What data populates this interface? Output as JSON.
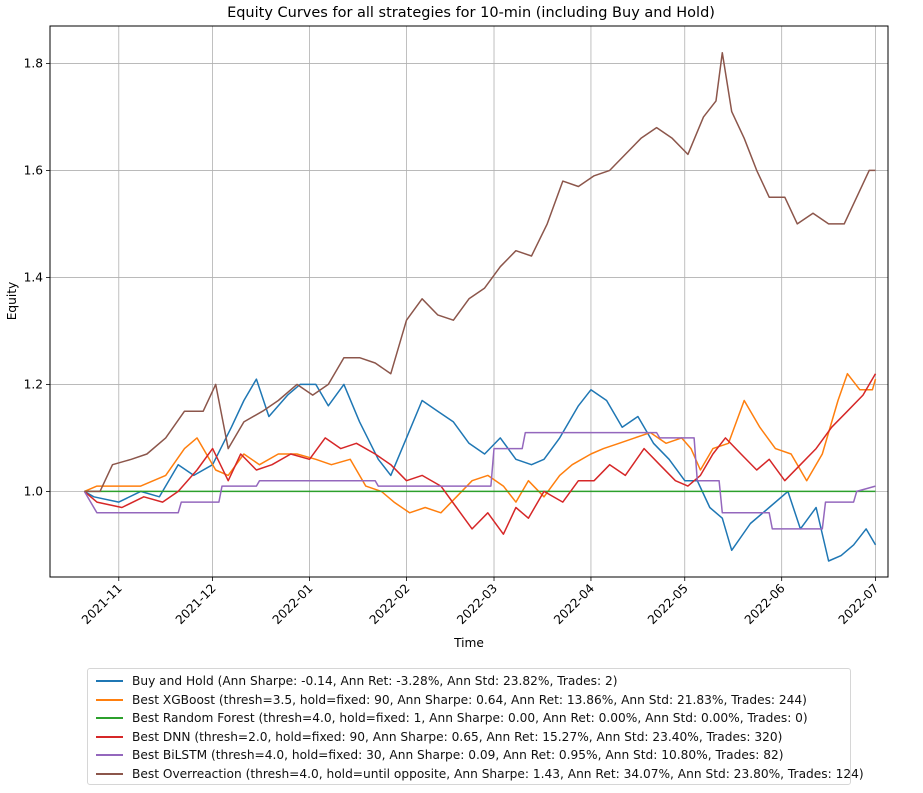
{
  "chart_data": {
    "type": "line",
    "title": "Equity Curves for all strategies for 10-min (including Buy and Hold)",
    "xlabel": "Time",
    "ylabel": "Equity",
    "grid": true,
    "xlim": [
      "2021-10-10",
      "2022-07-05"
    ],
    "ylim": [
      0.84,
      1.87
    ],
    "x_ticks": [
      {
        "date": "2021-11-01",
        "label": "2021-11"
      },
      {
        "date": "2021-12-01",
        "label": "2021-12"
      },
      {
        "date": "2022-01-01",
        "label": "2022-01"
      },
      {
        "date": "2022-02-01",
        "label": "2022-02"
      },
      {
        "date": "2022-03-01",
        "label": "2022-03"
      },
      {
        "date": "2022-04-01",
        "label": "2022-04"
      },
      {
        "date": "2022-05-01",
        "label": "2022-05"
      },
      {
        "date": "2022-06-01",
        "label": "2022-06"
      },
      {
        "date": "2022-07-01",
        "label": "2022-07"
      }
    ],
    "y_ticks": [
      1.0,
      1.2,
      1.4,
      1.6,
      1.8
    ],
    "y_tick_labels": [
      "1.0",
      "1.2",
      "1.4",
      "1.6",
      "1.8"
    ],
    "legend_position": "below",
    "series": [
      {
        "name": "Buy and Hold (Ann Sharpe: -0.14, Ann Ret: -3.28%, Ann Std: 23.82%, Trades: 2)",
        "color": "#1f77b4",
        "points": [
          [
            "2021-10-21",
            1.0
          ],
          [
            "2021-10-24",
            0.99
          ],
          [
            "2021-11-01",
            0.98
          ],
          [
            "2021-11-08",
            1.0
          ],
          [
            "2021-11-14",
            0.99
          ],
          [
            "2021-11-20",
            1.05
          ],
          [
            "2021-11-25",
            1.03
          ],
          [
            "2021-12-01",
            1.05
          ],
          [
            "2021-12-07",
            1.12
          ],
          [
            "2021-12-11",
            1.17
          ],
          [
            "2021-12-15",
            1.21
          ],
          [
            "2021-12-19",
            1.14
          ],
          [
            "2021-12-25",
            1.18
          ],
          [
            "2021-12-29",
            1.2
          ],
          [
            "2022-01-03",
            1.2
          ],
          [
            "2022-01-07",
            1.16
          ],
          [
            "2022-01-12",
            1.2
          ],
          [
            "2022-01-17",
            1.13
          ],
          [
            "2022-01-23",
            1.06
          ],
          [
            "2022-01-27",
            1.03
          ],
          [
            "2022-02-01",
            1.1
          ],
          [
            "2022-02-06",
            1.17
          ],
          [
            "2022-02-11",
            1.15
          ],
          [
            "2022-02-16",
            1.13
          ],
          [
            "2022-02-21",
            1.09
          ],
          [
            "2022-02-26",
            1.07
          ],
          [
            "2022-03-03",
            1.1
          ],
          [
            "2022-03-08",
            1.06
          ],
          [
            "2022-03-13",
            1.05
          ],
          [
            "2022-03-17",
            1.06
          ],
          [
            "2022-03-22",
            1.1
          ],
          [
            "2022-03-28",
            1.16
          ],
          [
            "2022-04-01",
            1.19
          ],
          [
            "2022-04-06",
            1.17
          ],
          [
            "2022-04-11",
            1.12
          ],
          [
            "2022-04-16",
            1.14
          ],
          [
            "2022-04-21",
            1.09
          ],
          [
            "2022-04-26",
            1.06
          ],
          [
            "2022-05-01",
            1.02
          ],
          [
            "2022-05-05",
            1.02
          ],
          [
            "2022-05-09",
            0.97
          ],
          [
            "2022-05-13",
            0.95
          ],
          [
            "2022-05-16",
            0.89
          ],
          [
            "2022-05-22",
            0.94
          ],
          [
            "2022-05-28",
            0.97
          ],
          [
            "2022-06-03",
            1.0
          ],
          [
            "2022-06-07",
            0.93
          ],
          [
            "2022-06-12",
            0.97
          ],
          [
            "2022-06-16",
            0.87
          ],
          [
            "2022-06-20",
            0.88
          ],
          [
            "2022-06-24",
            0.9
          ],
          [
            "2022-06-28",
            0.93
          ],
          [
            "2022-07-01",
            0.9
          ]
        ]
      },
      {
        "name": "Best XGBoost (thresh=3.5, hold=fixed: 90, Ann Sharpe: 0.64, Ann Ret: 13.86%, Ann Std: 21.83%, Trades: 244)",
        "color": "#ff7f0e",
        "points": [
          [
            "2021-10-21",
            1.0
          ],
          [
            "2021-10-25",
            1.01
          ],
          [
            "2021-11-08",
            1.01
          ],
          [
            "2021-11-16",
            1.03
          ],
          [
            "2021-11-22",
            1.08
          ],
          [
            "2021-11-26",
            1.1
          ],
          [
            "2021-12-02",
            1.04
          ],
          [
            "2021-12-06",
            1.03
          ],
          [
            "2021-12-11",
            1.07
          ],
          [
            "2021-12-16",
            1.05
          ],
          [
            "2021-12-22",
            1.07
          ],
          [
            "2021-12-28",
            1.07
          ],
          [
            "2022-01-03",
            1.06
          ],
          [
            "2022-01-08",
            1.05
          ],
          [
            "2022-01-14",
            1.06
          ],
          [
            "2022-01-19",
            1.01
          ],
          [
            "2022-01-24",
            1.0
          ],
          [
            "2022-01-28",
            0.98
          ],
          [
            "2022-02-02",
            0.96
          ],
          [
            "2022-02-07",
            0.97
          ],
          [
            "2022-02-12",
            0.96
          ],
          [
            "2022-02-17",
            0.99
          ],
          [
            "2022-02-22",
            1.02
          ],
          [
            "2022-02-27",
            1.03
          ],
          [
            "2022-03-04",
            1.01
          ],
          [
            "2022-03-08",
            0.98
          ],
          [
            "2022-03-12",
            1.02
          ],
          [
            "2022-03-17",
            0.99
          ],
          [
            "2022-03-22",
            1.03
          ],
          [
            "2022-03-26",
            1.05
          ],
          [
            "2022-04-01",
            1.07
          ],
          [
            "2022-04-05",
            1.08
          ],
          [
            "2022-04-10",
            1.09
          ],
          [
            "2022-04-15",
            1.1
          ],
          [
            "2022-04-20",
            1.11
          ],
          [
            "2022-04-25",
            1.09
          ],
          [
            "2022-04-30",
            1.1
          ],
          [
            "2022-05-03",
            1.08
          ],
          [
            "2022-05-06",
            1.04
          ],
          [
            "2022-05-10",
            1.08
          ],
          [
            "2022-05-15",
            1.09
          ],
          [
            "2022-05-20",
            1.17
          ],
          [
            "2022-05-25",
            1.12
          ],
          [
            "2022-05-30",
            1.08
          ],
          [
            "2022-06-04",
            1.07
          ],
          [
            "2022-06-09",
            1.02
          ],
          [
            "2022-06-14",
            1.07
          ],
          [
            "2022-06-19",
            1.17
          ],
          [
            "2022-06-22",
            1.22
          ],
          [
            "2022-06-26",
            1.19
          ],
          [
            "2022-06-30",
            1.19
          ],
          [
            "2022-07-01",
            1.21
          ]
        ]
      },
      {
        "name": "Best Random Forest (thresh=4.0, hold=fixed: 1, Ann Sharpe: 0.00, Ann Ret: 0.00%, Ann Std: 0.00%, Trades: 0)",
        "color": "#2ca02c",
        "points": [
          [
            "2021-10-21",
            1.0
          ],
          [
            "2022-07-01",
            1.0
          ]
        ]
      },
      {
        "name": "Best DNN (thresh=2.0, hold=fixed: 90, Ann Sharpe: 0.65, Ann Ret: 15.27%, Ann Std: 23.40%, Trades: 320)",
        "color": "#d62728",
        "points": [
          [
            "2021-10-21",
            1.0
          ],
          [
            "2021-10-25",
            0.98
          ],
          [
            "2021-11-02",
            0.97
          ],
          [
            "2021-11-09",
            0.99
          ],
          [
            "2021-11-15",
            0.98
          ],
          [
            "2021-11-20",
            1.0
          ],
          [
            "2021-11-26",
            1.04
          ],
          [
            "2021-12-01",
            1.08
          ],
          [
            "2021-12-06",
            1.02
          ],
          [
            "2021-12-10",
            1.07
          ],
          [
            "2021-12-15",
            1.04
          ],
          [
            "2021-12-20",
            1.05
          ],
          [
            "2021-12-26",
            1.07
          ],
          [
            "2022-01-01",
            1.06
          ],
          [
            "2022-01-06",
            1.1
          ],
          [
            "2022-01-11",
            1.08
          ],
          [
            "2022-01-16",
            1.09
          ],
          [
            "2022-01-22",
            1.07
          ],
          [
            "2022-01-27",
            1.05
          ],
          [
            "2022-02-01",
            1.02
          ],
          [
            "2022-02-06",
            1.03
          ],
          [
            "2022-02-12",
            1.01
          ],
          [
            "2022-02-17",
            0.97
          ],
          [
            "2022-02-22",
            0.93
          ],
          [
            "2022-02-27",
            0.96
          ],
          [
            "2022-03-04",
            0.92
          ],
          [
            "2022-03-08",
            0.97
          ],
          [
            "2022-03-12",
            0.95
          ],
          [
            "2022-03-17",
            1.0
          ],
          [
            "2022-03-23",
            0.98
          ],
          [
            "2022-03-28",
            1.02
          ],
          [
            "2022-04-02",
            1.02
          ],
          [
            "2022-04-07",
            1.05
          ],
          [
            "2022-04-12",
            1.03
          ],
          [
            "2022-04-18",
            1.08
          ],
          [
            "2022-04-23",
            1.05
          ],
          [
            "2022-04-28",
            1.02
          ],
          [
            "2022-05-02",
            1.01
          ],
          [
            "2022-05-06",
            1.03
          ],
          [
            "2022-05-10",
            1.07
          ],
          [
            "2022-05-14",
            1.1
          ],
          [
            "2022-05-19",
            1.07
          ],
          [
            "2022-05-24",
            1.04
          ],
          [
            "2022-05-28",
            1.06
          ],
          [
            "2022-06-02",
            1.02
          ],
          [
            "2022-06-07",
            1.05
          ],
          [
            "2022-06-12",
            1.08
          ],
          [
            "2022-06-17",
            1.12
          ],
          [
            "2022-06-22",
            1.15
          ],
          [
            "2022-06-27",
            1.18
          ],
          [
            "2022-07-01",
            1.22
          ]
        ]
      },
      {
        "name": "Best BiLSTM (thresh=4.0, hold=fixed: 30, Ann Sharpe: 0.09, Ann Ret: 0.95%, Ann Std: 10.80%, Trades: 82)",
        "color": "#9467bd",
        "points": [
          [
            "2021-10-21",
            1.0
          ],
          [
            "2021-10-25",
            0.96
          ],
          [
            "2021-11-10",
            0.96
          ],
          [
            "2021-11-20",
            0.96
          ],
          [
            "2021-11-21",
            0.98
          ],
          [
            "2021-12-03",
            0.98
          ],
          [
            "2021-12-04",
            1.01
          ],
          [
            "2021-12-15",
            1.01
          ],
          [
            "2021-12-16",
            1.02
          ],
          [
            "2022-01-22",
            1.02
          ],
          [
            "2022-01-23",
            1.01
          ],
          [
            "2022-02-28",
            1.01
          ],
          [
            "2022-03-01",
            1.08
          ],
          [
            "2022-03-10",
            1.08
          ],
          [
            "2022-03-11",
            1.11
          ],
          [
            "2022-04-22",
            1.11
          ],
          [
            "2022-04-23",
            1.1
          ],
          [
            "2022-05-04",
            1.1
          ],
          [
            "2022-05-05",
            1.02
          ],
          [
            "2022-05-12",
            1.02
          ],
          [
            "2022-05-13",
            0.96
          ],
          [
            "2022-05-28",
            0.96
          ],
          [
            "2022-05-29",
            0.93
          ],
          [
            "2022-06-14",
            0.93
          ],
          [
            "2022-06-15",
            0.98
          ],
          [
            "2022-06-24",
            0.98
          ],
          [
            "2022-06-25",
            1.0
          ],
          [
            "2022-07-01",
            1.01
          ]
        ]
      },
      {
        "name": "Best Overreaction (thresh=4.0, hold=until opposite, Ann Sharpe: 1.43, Ann Ret: 34.07%, Ann Std: 23.80%, Trades: 124)",
        "color": "#8c564b",
        "points": [
          [
            "2021-10-21",
            1.0
          ],
          [
            "2021-10-26",
            1.0
          ],
          [
            "2021-10-30",
            1.05
          ],
          [
            "2021-11-05",
            1.06
          ],
          [
            "2021-11-10",
            1.07
          ],
          [
            "2021-11-16",
            1.1
          ],
          [
            "2021-11-22",
            1.15
          ],
          [
            "2021-11-28",
            1.15
          ],
          [
            "2021-12-02",
            1.2
          ],
          [
            "2021-12-06",
            1.08
          ],
          [
            "2021-12-11",
            1.13
          ],
          [
            "2021-12-17",
            1.15
          ],
          [
            "2021-12-22",
            1.17
          ],
          [
            "2021-12-28",
            1.2
          ],
          [
            "2022-01-02",
            1.18
          ],
          [
            "2022-01-07",
            1.2
          ],
          [
            "2022-01-12",
            1.25
          ],
          [
            "2022-01-17",
            1.25
          ],
          [
            "2022-01-22",
            1.24
          ],
          [
            "2022-01-27",
            1.22
          ],
          [
            "2022-02-01",
            1.32
          ],
          [
            "2022-02-06",
            1.36
          ],
          [
            "2022-02-11",
            1.33
          ],
          [
            "2022-02-16",
            1.32
          ],
          [
            "2022-02-21",
            1.36
          ],
          [
            "2022-02-26",
            1.38
          ],
          [
            "2022-03-03",
            1.42
          ],
          [
            "2022-03-08",
            1.45
          ],
          [
            "2022-03-13",
            1.44
          ],
          [
            "2022-03-18",
            1.5
          ],
          [
            "2022-03-23",
            1.58
          ],
          [
            "2022-03-28",
            1.57
          ],
          [
            "2022-04-02",
            1.59
          ],
          [
            "2022-04-07",
            1.6
          ],
          [
            "2022-04-12",
            1.63
          ],
          [
            "2022-04-17",
            1.66
          ],
          [
            "2022-04-22",
            1.68
          ],
          [
            "2022-04-27",
            1.66
          ],
          [
            "2022-05-02",
            1.63
          ],
          [
            "2022-05-07",
            1.7
          ],
          [
            "2022-05-11",
            1.73
          ],
          [
            "2022-05-13",
            1.82
          ],
          [
            "2022-05-16",
            1.71
          ],
          [
            "2022-05-20",
            1.66
          ],
          [
            "2022-05-24",
            1.6
          ],
          [
            "2022-05-28",
            1.55
          ],
          [
            "2022-06-02",
            1.55
          ],
          [
            "2022-06-06",
            1.5
          ],
          [
            "2022-06-11",
            1.52
          ],
          [
            "2022-06-16",
            1.5
          ],
          [
            "2022-06-21",
            1.5
          ],
          [
            "2022-06-25",
            1.55
          ],
          [
            "2022-06-29",
            1.6
          ],
          [
            "2022-07-01",
            1.6
          ]
        ]
      }
    ]
  }
}
